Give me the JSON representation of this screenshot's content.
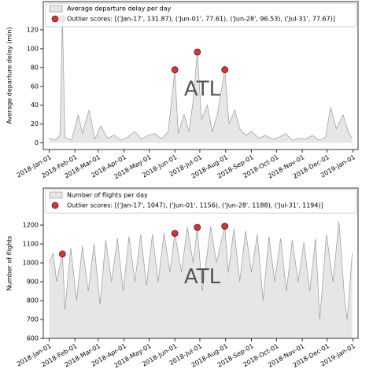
{
  "chart_data": [
    {
      "type": "area",
      "ylabel": "Average departure delay (min)",
      "annotation": "ATL",
      "xlim": [
        "2017-12-25",
        "2019-01-07"
      ],
      "ylim": [
        -7,
        150
      ],
      "yticks": [
        0,
        20,
        40,
        60,
        80,
        100,
        120
      ],
      "xticks": [
        {
          "value": "2018-01-01",
          "label": "2018-Jan-01"
        },
        {
          "value": "2018-02-01",
          "label": "2018-Feb-01"
        },
        {
          "value": "2018-03-01",
          "label": "2018-Mar-01"
        },
        {
          "value": "2018-04-01",
          "label": "2018-Apr-01"
        },
        {
          "value": "2018-05-01",
          "label": "2018-May-01"
        },
        {
          "value": "2018-06-01",
          "label": "2018-Jun-01"
        },
        {
          "value": "2018-07-01",
          "label": "2018-Jul-01"
        },
        {
          "value": "2018-08-01",
          "label": "2018-Aug-01"
        },
        {
          "value": "2018-09-01",
          "label": "2018-Sep-01"
        },
        {
          "value": "2018-10-01",
          "label": "2018-Oct-01"
        },
        {
          "value": "2018-11-01",
          "label": "2018-Nov-01"
        },
        {
          "value": "2018-12-01",
          "label": "2018-Dec-01"
        },
        {
          "value": "2019-01-01",
          "label": "2019-Jan-01"
        }
      ],
      "series": [
        {
          "name": "Average departure delay per day",
          "color": "#e6e6e6",
          "line_color": "#999999",
          "x": [
            "2018-01-01",
            "2018-01-08",
            "2018-01-14",
            "2018-01-17",
            "2018-01-20",
            "2018-01-28",
            "2018-02-05",
            "2018-02-10",
            "2018-02-18",
            "2018-02-25",
            "2018-03-04",
            "2018-03-12",
            "2018-03-20",
            "2018-03-28",
            "2018-04-05",
            "2018-04-14",
            "2018-04-22",
            "2018-04-30",
            "2018-05-08",
            "2018-05-16",
            "2018-05-24",
            "2018-06-01",
            "2018-06-05",
            "2018-06-12",
            "2018-06-18",
            "2018-06-23",
            "2018-06-28",
            "2018-07-03",
            "2018-07-10",
            "2018-07-16",
            "2018-07-22",
            "2018-07-31",
            "2018-08-05",
            "2018-08-12",
            "2018-08-18",
            "2018-08-25",
            "2018-09-01",
            "2018-09-10",
            "2018-09-18",
            "2018-09-26",
            "2018-10-04",
            "2018-10-12",
            "2018-10-20",
            "2018-10-28",
            "2018-11-05",
            "2018-11-13",
            "2018-11-21",
            "2018-11-29",
            "2018-12-05",
            "2018-12-12",
            "2018-12-20",
            "2018-12-27",
            "2018-12-31"
          ],
          "values": [
            5,
            3,
            8,
            131.87,
            6,
            3,
            30,
            10,
            35,
            4,
            18,
            5,
            8,
            3,
            6,
            12,
            4,
            8,
            10,
            4,
            12,
            77.61,
            10,
            30,
            12,
            45,
            96.53,
            25,
            40,
            12,
            30,
            77.67,
            20,
            35,
            15,
            8,
            12,
            5,
            8,
            4,
            6,
            10,
            3,
            5,
            4,
            8,
            3,
            6,
            38,
            15,
            30,
            10,
            5
          ]
        },
        {
          "name": "Outlier scores: [('Jan-17', 131.87), ('Jun-01', 77.61), ('Jun-28', 96.53), ('Jul-31', 77.67)]",
          "color": "#e03030",
          "marker": true,
          "x": [
            "2018-01-17",
            "2018-06-01",
            "2018-06-28",
            "2018-07-31"
          ],
          "values": [
            131.87,
            77.61,
            96.53,
            77.67
          ]
        }
      ]
    },
    {
      "type": "area",
      "ylabel": "Number of flights",
      "annotation": "ATL",
      "xlim": [
        "2017-12-25",
        "2019-01-07"
      ],
      "ylim": [
        600,
        1396
      ],
      "yticks": [
        600,
        700,
        800,
        900,
        1000,
        1100,
        1200
      ],
      "xticks": [
        {
          "value": "2018-01-01",
          "label": "2018-Jan-01"
        },
        {
          "value": "2018-02-01",
          "label": "2018-Feb-01"
        },
        {
          "value": "2018-03-01",
          "label": "2018-Mar-01"
        },
        {
          "value": "2018-04-01",
          "label": "2018-Apr-01"
        },
        {
          "value": "2018-05-01",
          "label": "2018-May-01"
        },
        {
          "value": "2018-06-01",
          "label": "2018-Jun-01"
        },
        {
          "value": "2018-07-01",
          "label": "2018-Jul-01"
        },
        {
          "value": "2018-08-01",
          "label": "2018-Aug-01"
        },
        {
          "value": "2018-09-01",
          "label": "2018-Sep-01"
        },
        {
          "value": "2018-10-01",
          "label": "2018-Oct-01"
        },
        {
          "value": "2018-11-01",
          "label": "2018-Nov-01"
        },
        {
          "value": "2018-12-01",
          "label": "2018-Dec-01"
        },
        {
          "value": "2019-01-01",
          "label": "2019-Jan-01"
        }
      ],
      "series": [
        {
          "name": "Number of flights per day",
          "color": "#e6e6e6",
          "line_color": "#999999",
          "x": [
            "2018-01-01",
            "2018-01-06",
            "2018-01-10",
            "2018-01-17",
            "2018-01-20",
            "2018-01-27",
            "2018-02-03",
            "2018-02-10",
            "2018-02-17",
            "2018-02-24",
            "2018-03-03",
            "2018-03-10",
            "2018-03-17",
            "2018-03-24",
            "2018-03-31",
            "2018-04-07",
            "2018-04-14",
            "2018-04-21",
            "2018-04-28",
            "2018-05-05",
            "2018-05-12",
            "2018-05-19",
            "2018-05-26",
            "2018-06-01",
            "2018-06-09",
            "2018-06-16",
            "2018-06-23",
            "2018-06-28",
            "2018-07-04",
            "2018-07-14",
            "2018-07-21",
            "2018-07-31",
            "2018-08-04",
            "2018-08-11",
            "2018-08-18",
            "2018-08-25",
            "2018-09-01",
            "2018-09-08",
            "2018-09-15",
            "2018-09-22",
            "2018-09-29",
            "2018-10-06",
            "2018-10-13",
            "2018-10-20",
            "2018-10-27",
            "2018-11-03",
            "2018-11-10",
            "2018-11-17",
            "2018-11-22",
            "2018-11-30",
            "2018-12-08",
            "2018-12-15",
            "2018-12-22",
            "2018-12-25",
            "2018-12-31"
          ],
          "values": [
            1000,
            1050,
            900,
            1047,
            750,
            1080,
            800,
            1090,
            850,
            1100,
            780,
            1120,
            900,
            1130,
            850,
            1140,
            900,
            1150,
            880,
            1150,
            900,
            1160,
            950,
            1156,
            950,
            1190,
            1000,
            1188,
            850,
            1190,
            1000,
            1194,
            950,
            1180,
            900,
            1170,
            950,
            1150,
            800,
            1140,
            900,
            1130,
            850,
            1120,
            900,
            1110,
            850,
            1130,
            700,
            1150,
            900,
            1220,
            800,
            700,
            1050
          ]
        },
        {
          "name": "Outlier scores: [('Jan-17', 1047), ('Jun-01', 1156), ('Jun-28', 1188), ('Jul-31', 1194)]",
          "color": "#e03030",
          "marker": true,
          "x": [
            "2018-01-17",
            "2018-06-01",
            "2018-06-28",
            "2018-07-31"
          ],
          "values": [
            1047,
            1156,
            1188,
            1194
          ]
        }
      ]
    }
  ]
}
